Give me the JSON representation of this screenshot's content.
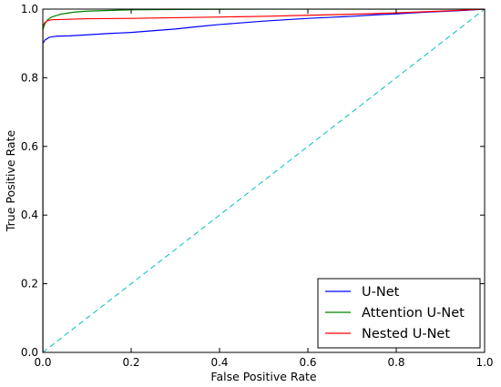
{
  "chart_data": {
    "type": "line",
    "title": "",
    "xlabel": "False Positive Rate",
    "ylabel": "True Positive Rate",
    "xlim": [
      0.0,
      1.0
    ],
    "ylim": [
      0.0,
      1.0
    ],
    "x_ticks": [
      "0.0",
      "0.2",
      "0.4",
      "0.6",
      "0.8",
      "1.0"
    ],
    "y_ticks": [
      "0.0",
      "0.2",
      "0.4",
      "0.6",
      "0.8",
      "1.0"
    ],
    "grid": false,
    "legend_position": "lower-right",
    "series": [
      {
        "name": "U-Net",
        "color": "#0000ff",
        "points": [
          [
            0.0,
            0.0
          ],
          [
            0.0,
            0.9
          ],
          [
            0.005,
            0.91
          ],
          [
            0.015,
            0.918
          ],
          [
            0.03,
            0.921
          ],
          [
            0.06,
            0.922
          ],
          [
            0.1,
            0.925
          ],
          [
            0.15,
            0.929
          ],
          [
            0.2,
            0.932
          ],
          [
            0.25,
            0.937
          ],
          [
            0.3,
            0.942
          ],
          [
            0.35,
            0.949
          ],
          [
            0.4,
            0.955
          ],
          [
            0.45,
            0.96
          ],
          [
            0.5,
            0.965
          ],
          [
            0.55,
            0.969
          ],
          [
            0.6,
            0.973
          ],
          [
            0.65,
            0.976
          ],
          [
            0.7,
            0.979
          ],
          [
            0.75,
            0.983
          ],
          [
            0.8,
            0.986
          ],
          [
            0.85,
            0.99
          ],
          [
            0.9,
            0.993
          ],
          [
            0.95,
            0.996
          ],
          [
            1.0,
            1.0
          ]
        ]
      },
      {
        "name": "Attention U-Net",
        "color": "#008000",
        "points": [
          [
            0.0,
            0.0
          ],
          [
            0.0,
            0.94
          ],
          [
            0.004,
            0.955
          ],
          [
            0.01,
            0.968
          ],
          [
            0.02,
            0.977
          ],
          [
            0.04,
            0.985
          ],
          [
            0.07,
            0.991
          ],
          [
            0.1,
            0.994
          ],
          [
            0.15,
            0.996
          ],
          [
            0.2,
            0.998
          ],
          [
            0.3,
            0.999
          ],
          [
            0.5,
            1.0
          ],
          [
            1.0,
            1.0
          ]
        ]
      },
      {
        "name": "Nested U-Net",
        "color": "#ff0000",
        "points": [
          [
            0.0,
            0.0
          ],
          [
            0.0,
            0.95
          ],
          [
            0.004,
            0.96
          ],
          [
            0.01,
            0.966
          ],
          [
            0.02,
            0.969
          ],
          [
            0.05,
            0.97
          ],
          [
            0.1,
            0.972
          ],
          [
            0.2,
            0.973
          ],
          [
            0.3,
            0.975
          ],
          [
            0.4,
            0.977
          ],
          [
            0.5,
            0.979
          ],
          [
            0.6,
            0.982
          ],
          [
            0.7,
            0.985
          ],
          [
            0.8,
            0.989
          ],
          [
            0.9,
            0.994
          ],
          [
            1.0,
            1.0
          ]
        ]
      }
    ],
    "reference_line": {
      "style": "dashed",
      "color": "#00bfbf",
      "points": [
        [
          0.0,
          0.0
        ],
        [
          1.0,
          1.0
        ]
      ]
    }
  }
}
